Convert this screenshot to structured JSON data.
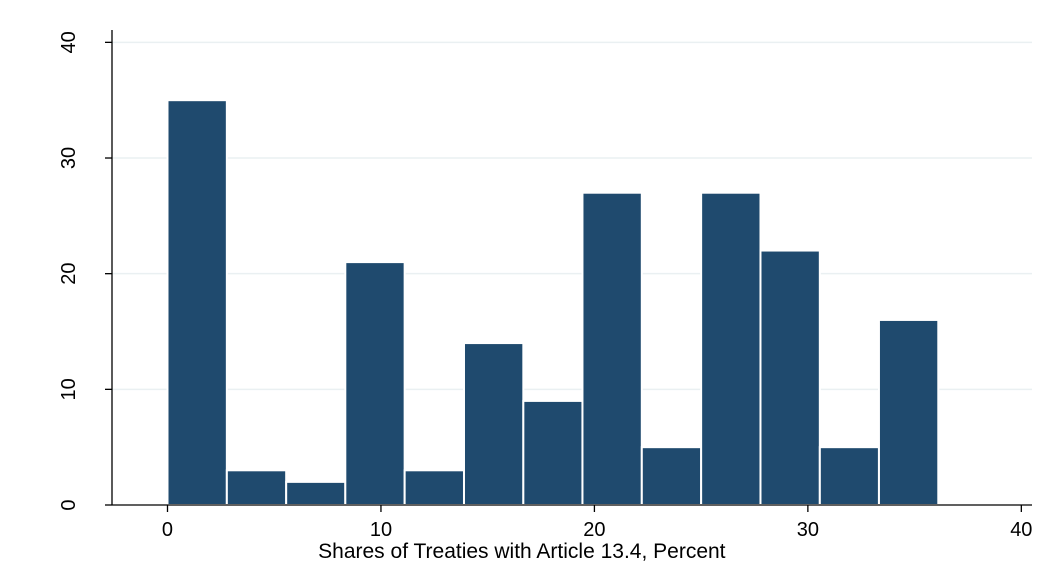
{
  "chart_data": {
    "type": "bar",
    "subtype": "histogram",
    "title": "",
    "xlabel": "Shares of Treaties with Article 13.4, Percent",
    "ylabel": "",
    "xlim": [
      -2.6,
      40.5
    ],
    "ylim": [
      0,
      41.5
    ],
    "x_ticks": [
      0,
      10,
      20,
      30,
      40
    ],
    "y_ticks": [
      0,
      10,
      20,
      30,
      40
    ],
    "grid": "horizontal",
    "bin_width": 2.78,
    "bins": [
      {
        "x0": 0.0,
        "x1": 2.78,
        "value": 35
      },
      {
        "x0": 2.78,
        "x1": 5.56,
        "value": 3
      },
      {
        "x0": 5.56,
        "x1": 8.33,
        "value": 2
      },
      {
        "x0": 8.33,
        "x1": 11.11,
        "value": 21
      },
      {
        "x0": 11.11,
        "x1": 13.89,
        "value": 3
      },
      {
        "x0": 13.89,
        "x1": 16.67,
        "value": 14
      },
      {
        "x0": 16.67,
        "x1": 19.44,
        "value": 9
      },
      {
        "x0": 19.44,
        "x1": 22.22,
        "value": 27
      },
      {
        "x0": 22.22,
        "x1": 25.0,
        "value": 5
      },
      {
        "x0": 25.0,
        "x1": 27.78,
        "value": 27
      },
      {
        "x0": 27.78,
        "x1": 30.56,
        "value": 22
      },
      {
        "x0": 30.56,
        "x1": 33.33,
        "value": 5
      },
      {
        "x0": 33.33,
        "x1": 36.11,
        "value": 16
      }
    ],
    "colors": {
      "bar": "#1f4a6e",
      "bar_edge": "#ffffff",
      "grid": "#eaf0f2",
      "axis": "#000000"
    }
  }
}
